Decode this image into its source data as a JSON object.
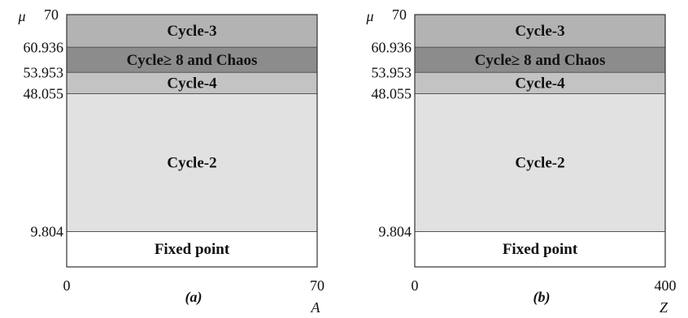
{
  "chart_data": [
    {
      "type": "area",
      "panel_label": "(a)",
      "ylabel": "μ",
      "xlabel": "A",
      "xlim": [
        0,
        70
      ],
      "ylim": [
        0,
        70
      ],
      "x_ticks": [
        "0",
        "70"
      ],
      "y_ticks": [
        "70",
        "60.936",
        "53.953",
        "48.055",
        "9.804"
      ],
      "regions": [
        {
          "label": "Fixed point",
          "y_min": 0,
          "y_max": 9.804,
          "color": "#ffffff"
        },
        {
          "label": "Cycle-2",
          "y_min": 9.804,
          "y_max": 48.055,
          "color": "#e1e1e1"
        },
        {
          "label": "Cycle-4",
          "y_min": 48.055,
          "y_max": 53.953,
          "color": "#c3c3c3"
        },
        {
          "label": "Cycle≥ 8 and Chaos",
          "y_min": 53.953,
          "y_max": 60.936,
          "color": "#8c8c8c"
        },
        {
          "label": "Cycle-3",
          "y_min": 60.936,
          "y_max": 70,
          "color": "#b3b3b3"
        }
      ]
    },
    {
      "type": "area",
      "panel_label": "(b)",
      "ylabel": "μ",
      "xlabel": "Z",
      "xlim": [
        0,
        400
      ],
      "ylim": [
        0,
        70
      ],
      "x_ticks": [
        "0",
        "400"
      ],
      "y_ticks": [
        "70",
        "60.936",
        "53.953",
        "48.055",
        "9.804"
      ],
      "regions": [
        {
          "label": "Fixed point",
          "y_min": 0,
          "y_max": 9.804,
          "color": "#ffffff"
        },
        {
          "label": "Cycle-2",
          "y_min": 9.804,
          "y_max": 48.055,
          "color": "#e1e1e1"
        },
        {
          "label": "Cycle-4",
          "y_min": 48.055,
          "y_max": 53.953,
          "color": "#c3c3c3"
        },
        {
          "label": "Cycle≥ 8 and Chaos",
          "y_min": 53.953,
          "y_max": 60.936,
          "color": "#8c8c8c"
        },
        {
          "label": "Cycle-3",
          "y_min": 60.936,
          "y_max": 70,
          "color": "#b3b3b3"
        }
      ]
    }
  ]
}
